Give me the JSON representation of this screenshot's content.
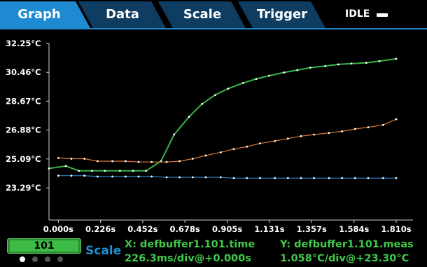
{
  "tabs": [
    {
      "label": "Graph",
      "active": true
    },
    {
      "label": "Data",
      "active": false
    },
    {
      "label": "Scale",
      "active": false
    },
    {
      "label": "Trigger",
      "active": false
    }
  ],
  "status": {
    "text": "IDLE",
    "icon": "remote-bar-icon"
  },
  "colors": {
    "tab_active": "#1e8ad1",
    "tab_inactive": "#0f3d62",
    "trace_green": "#36b544",
    "trace_orange": "#e07a32",
    "trace_blue": "#2a7fc8",
    "info_text": "#40c94a",
    "buffer_bg": "#3dbb45"
  },
  "chart_data": {
    "type": "line",
    "x_tick_labels": [
      "0.000s",
      "0.226s",
      "0.452s",
      "0.678s",
      "0.905s",
      "1.131s",
      "1.357s",
      "1.584s",
      "1.810s"
    ],
    "y_tick_labels": [
      "32.25°C",
      "30.46°C",
      "28.67°C",
      "26.88°C",
      "25.09°C",
      "23.29°C"
    ],
    "x_ticks": [
      0.0,
      0.226,
      0.452,
      0.678,
      0.905,
      1.131,
      1.357,
      1.584,
      1.81
    ],
    "y_ticks": [
      32.25,
      30.46,
      28.67,
      26.88,
      25.09,
      23.29
    ],
    "xlim": [
      -0.05,
      1.9
    ],
    "ylim": [
      21.3,
      32.25
    ],
    "grid": false,
    "series": [
      {
        "color": "#36b544",
        "x": [
          -0.05,
          0.04,
          0.11,
          0.18,
          0.25,
          0.33,
          0.4,
          0.47,
          0.55,
          0.62,
          0.7,
          0.77,
          0.84,
          0.91,
          0.99,
          1.06,
          1.13,
          1.21,
          1.28,
          1.35,
          1.43,
          1.5,
          1.57,
          1.65,
          1.72,
          1.81
        ],
        "y": [
          24.5,
          24.65,
          24.35,
          24.35,
          24.35,
          24.35,
          24.35,
          24.35,
          24.95,
          26.6,
          27.7,
          28.5,
          29.05,
          29.45,
          29.8,
          30.05,
          30.25,
          30.45,
          30.6,
          30.75,
          30.85,
          30.95,
          31.0,
          31.05,
          31.15,
          31.3
        ]
      },
      {
        "color": "#e07a32",
        "x": [
          0.0,
          0.07,
          0.14,
          0.21,
          0.29,
          0.36,
          0.43,
          0.5,
          0.58,
          0.65,
          0.72,
          0.79,
          0.87,
          0.94,
          1.01,
          1.08,
          1.16,
          1.23,
          1.3,
          1.37,
          1.45,
          1.52,
          1.59,
          1.66,
          1.74,
          1.81
        ],
        "y": [
          25.15,
          25.1,
          25.1,
          24.95,
          24.95,
          24.95,
          24.9,
          24.9,
          24.9,
          24.95,
          25.1,
          25.3,
          25.5,
          25.7,
          25.85,
          26.05,
          26.2,
          26.35,
          26.5,
          26.6,
          26.7,
          26.8,
          26.95,
          27.05,
          27.2,
          27.55
        ]
      },
      {
        "color": "#2a7fc8",
        "x": [
          0.0,
          0.07,
          0.14,
          0.21,
          0.29,
          0.36,
          0.43,
          0.5,
          0.58,
          0.65,
          0.72,
          0.79,
          0.87,
          0.94,
          1.01,
          1.08,
          1.16,
          1.23,
          1.3,
          1.37,
          1.45,
          1.52,
          1.59,
          1.66,
          1.74,
          1.81
        ],
        "y": [
          24.05,
          24.05,
          24.05,
          24.0,
          24.0,
          24.0,
          24.0,
          24.0,
          23.95,
          23.95,
          23.95,
          23.95,
          23.95,
          23.9,
          23.9,
          23.9,
          23.9,
          23.9,
          23.9,
          23.9,
          23.9,
          23.9,
          23.9,
          23.9,
          23.9,
          23.9
        ]
      }
    ]
  },
  "footer": {
    "buffer_label": "101",
    "scale_label": "Scale",
    "x_title": "X: defbuffer1.101.time",
    "x_scale": "226.3ms/div@+0.000s",
    "y_title": "Y: defbuffer1.101.meas",
    "y_scale": "1.058°C/div@+23.30°C",
    "page_dots": [
      true,
      false,
      false,
      false
    ]
  }
}
